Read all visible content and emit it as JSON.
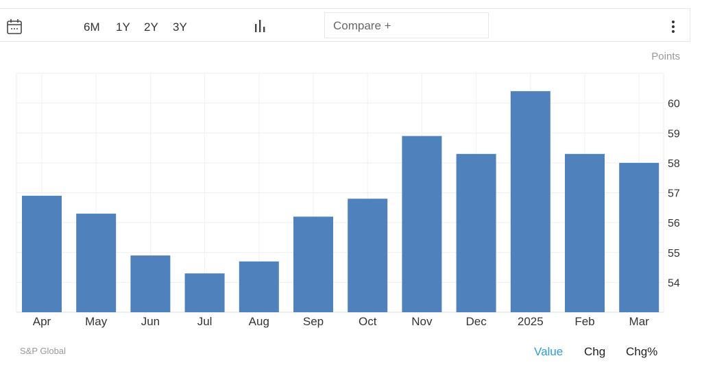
{
  "toolbar": {
    "ranges": [
      "6M",
      "1Y",
      "2Y",
      "3Y"
    ],
    "compare_placeholder": "Compare +",
    "icons": [
      "calendar-icon",
      "bar-chart-icon",
      "more-vertical-icon"
    ]
  },
  "chart_data": {
    "type": "bar",
    "categories": [
      "Apr",
      "May",
      "Jun",
      "Jul",
      "Aug",
      "Sep",
      "Oct",
      "Nov",
      "Dec",
      "2025",
      "Feb",
      "Mar"
    ],
    "values": [
      56.9,
      56.3,
      54.9,
      54.3,
      54.7,
      56.2,
      56.8,
      58.9,
      58.3,
      60.4,
      58.3,
      58.0
    ],
    "unit_label": "Points",
    "ylim": [
      53,
      61
    ],
    "yticks": [
      54,
      55,
      56,
      57,
      58,
      59,
      60
    ],
    "y_axis_side": "right",
    "grid": true,
    "bar_color": "#4f81bd"
  },
  "footer": {
    "source": "S&P Global",
    "tabs": [
      "Value",
      "Chg",
      "Chg%"
    ],
    "active_tab": "Value",
    "active_color": "#2a9fd8"
  }
}
